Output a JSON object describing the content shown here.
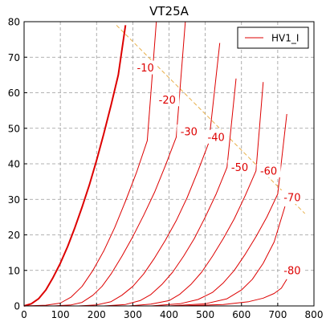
{
  "chart_data": {
    "type": "line",
    "title": "VT25A",
    "xlabel": "",
    "ylabel": "",
    "xlim": [
      0,
      800
    ],
    "ylim": [
      0,
      80
    ],
    "x_ticks": [
      0,
      100,
      200,
      300,
      400,
      500,
      600,
      700,
      800
    ],
    "y_ticks": [
      0,
      10,
      20,
      30,
      40,
      50,
      60,
      70,
      80
    ],
    "grid": true,
    "legend": {
      "position": "top-right",
      "entries": [
        "HV1_I"
      ]
    },
    "colors": {
      "curve": "#dd0000",
      "load_line": "#e8b04a",
      "grid": "#999999"
    },
    "series": [
      {
        "grid_voltage": "0",
        "x": [
          0,
          20,
          40,
          60,
          80,
          100,
          120,
          140,
          160,
          180,
          200,
          220,
          240,
          260,
          280
        ],
        "y": [
          0,
          0.6,
          2,
          4.5,
          8,
          12,
          16.7,
          22,
          27.8,
          34,
          41,
          48.5,
          56.5,
          65,
          79
        ]
      },
      {
        "grid_voltage": "-10",
        "x": [
          0,
          60,
          100,
          130,
          160,
          190,
          220,
          250,
          280,
          310,
          340,
          365
        ],
        "y": [
          0,
          0.2,
          0.8,
          2.5,
          5.5,
          10,
          15.5,
          22,
          29.5,
          37.5,
          46.5,
          80
        ]
      },
      {
        "grid_voltage": "-20",
        "x": [
          80,
          130,
          160,
          190,
          215,
          240,
          270,
          300,
          330,
          360,
          390,
          420,
          445
        ],
        "y": [
          0,
          0.3,
          1,
          3,
          5.5,
          9,
          14,
          19.5,
          25.5,
          32,
          39.5,
          47.5,
          80
        ]
      },
      {
        "grid_voltage": "-30",
        "x": [
          150,
          200,
          240,
          270,
          300,
          330,
          360,
          390,
          420,
          450,
          480,
          510,
          540
        ],
        "y": [
          0,
          0.3,
          1.2,
          3,
          5.5,
          9,
          13.5,
          18.5,
          24,
          30.5,
          38,
          46,
          74
        ]
      },
      {
        "grid_voltage": "-40",
        "x": [
          220,
          280,
          320,
          350,
          380,
          410,
          440,
          470,
          500,
          530,
          560,
          585
        ],
        "y": [
          0,
          0.4,
          1.5,
          3.2,
          6,
          9.5,
          14,
          19,
          25,
          31.5,
          39,
          64
        ]
      },
      {
        "grid_voltage": "-50",
        "x": [
          290,
          350,
          400,
          430,
          460,
          490,
          520,
          550,
          580,
          610,
          640,
          660
        ],
        "y": [
          0,
          0.5,
          1.5,
          3.3,
          6,
          9.5,
          14,
          19,
          24.5,
          31,
          38,
          63
        ]
      },
      {
        "grid_voltage": "-60",
        "x": [
          350,
          430,
          480,
          520,
          550,
          580,
          610,
          640,
          670,
          700,
          725
        ],
        "y": [
          0,
          0.6,
          1.8,
          3.8,
          6.5,
          10,
          14.5,
          19.5,
          25,
          31.5,
          54
        ]
      },
      {
        "grid_voltage": "-70",
        "x": [
          400,
          500,
          560,
          600,
          630,
          660,
          690,
          720
        ],
        "y": [
          0,
          0.6,
          2,
          4.5,
          7.5,
          12,
          18,
          28
        ]
      },
      {
        "grid_voltage": "-80",
        "x": [
          430,
          550,
          620,
          660,
          690,
          710,
          725
        ],
        "y": [
          0,
          0.4,
          1.2,
          2.2,
          3.5,
          5,
          7.5
        ]
      }
    ],
    "load_line": {
      "x": [
        255,
        775
      ],
      "y": [
        79,
        26
      ]
    },
    "annotations": [
      {
        "text": "-10",
        "x": 335,
        "y": 67
      },
      {
        "text": "-20",
        "x": 395,
        "y": 58
      },
      {
        "text": "-30",
        "x": 455,
        "y": 49
      },
      {
        "text": "-40",
        "x": 530,
        "y": 47.5
      },
      {
        "text": "-50",
        "x": 595,
        "y": 39
      },
      {
        "text": "-60",
        "x": 675,
        "y": 38
      },
      {
        "text": "-70",
        "x": 740,
        "y": 30.5
      },
      {
        "text": "-80",
        "x": 740,
        "y": 10
      }
    ]
  }
}
